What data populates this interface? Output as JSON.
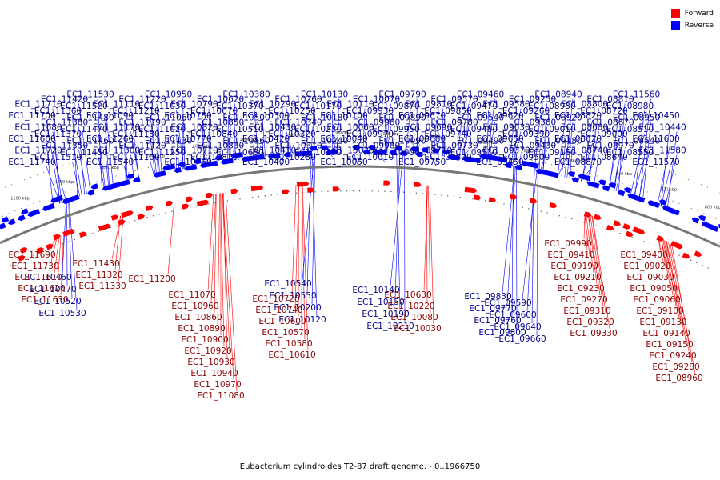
{
  "diagram": {
    "caption": "Eubacterium cylindroides T2-87 draft genome. - 0..1966750",
    "legend": [
      {
        "label": "Forward",
        "color": "#ff0000"
      },
      {
        "label": "Reverse",
        "color": "#0000ff"
      }
    ],
    "ticks": [
      "1100 kbp",
      "1080 kbp",
      "1060 kbp",
      "1040 kbp",
      "1020 kbp",
      "1000 kbp",
      "980 kbp",
      "960 kbp",
      "940 kbp",
      "920 kbp",
      "900 kbp",
      "880 kbp",
      "860 kbp",
      "840 kbp",
      "820 kbp",
      "800 kbp"
    ],
    "reverse_labels": [
      "EC1_11740",
      "EC1_11720",
      "EC1_11660",
      "EC1_11680",
      "EC1_11700",
      "EC1_11710",
      "EC1_11510",
      "EC1_11350",
      "EC1_11370",
      "EC1_11380",
      "EC1_11360",
      "EC1_11420",
      "EC1_11450",
      "EC1_11460",
      "EC1_11470",
      "EC1_11480",
      "EC1_11520",
      "EC1_11530",
      "EC1_11540",
      "EC1_11300",
      "EC1_11260",
      "EC1_11170",
      "EC1_11090",
      "EC1_11110",
      "EC1_11100",
      "EC1_11120",
      "EC1_11180",
      "EC1_11190",
      "EC1_11210",
      "EC1_11220",
      "EC1_11250",
      "EC1_11130",
      "EC1_11020",
      "EC1_11060",
      "EC1_11030",
      "EC1_10950",
      "EC1_10760",
      "EC1_10710",
      "EC1_10770",
      "EC1_10820",
      "EC1_10780",
      "EC1_10790",
      "EC1_10810",
      "EC1_10830",
      "EC1_10840",
      "EC1_10850",
      "EC1_10670",
      "EC1_10620",
      "EC1_10680",
      "EC1_10560",
      "EC1_10510",
      "EC1_10500",
      "EC1_10370",
      "EC1_10380",
      "EC1_10400",
      "EC1_10410",
      "EC1_10420",
      "EC1_10430",
      "EC1_10300",
      "EC1_10290",
      "EC1_10280",
      "EC1_10310",
      "EC1_10320",
      "EC1_10340",
      "EC1_10250",
      "EC1_10260",
      "EC1_10270",
      "EC1_10240",
      "EC1_10230",
      "EC1_10180",
      "EC1_10170",
      "EC1_10130",
      "EC1_10050",
      "EC1_10020",
      "EC1_10040",
      "EC1_10060",
      "EC1_10100",
      "EC1_10110",
      "EC1_10010",
      "EC1_09980",
      "EC1_09970",
      "EC1_09960",
      "EC1_09930",
      "EC1_10070",
      "EC1_10000",
      "EC1_10090",
      "EC1_09950",
      "EC1_09890",
      "EC1_09870",
      "EC1_09790",
      "EC1_09750",
      "EC1_09710",
      "EC1_09680",
      "EC1_09690",
      "EC1_09670",
      "EC1_09810",
      "EC1_09820",
      "EC1_09730",
      "EC1_09740",
      "EC1_09780",
      "EC1_09850",
      "EC1_09570",
      "EC1_09510",
      "EC1_09490",
      "EC1_09480",
      "EC1_09540",
      "EC1_09470",
      "EC1_09460",
      "EC1_09450",
      "EC1_09370",
      "EC1_09650",
      "EC1_09630",
      "EC1_09620",
      "EC1_09580",
      "EC1_09500",
      "EC1_09430",
      "EC1_09390",
      "EC1_09360",
      "EC1_09260",
      "EC1_09250",
      "EC1_09160",
      "EC1_09180",
      "EC1_09010",
      "EC1_08920",
      "EC1_08930",
      "EC1_08940",
      "EC1_08870",
      "EC1_08740",
      "EC1_08620",
      "EC1_08680",
      "EC1_08820",
      "EC1_08800",
      "EC1_08640",
      "EC1_08970",
      "EC1_09000",
      "EC1_08670",
      "EC1_08720",
      "EC1_08810",
      "EC1_08550",
      "EC1_08540",
      "EC1_08510",
      "EC1_08950",
      "EC1_08980",
      "EC1_11560",
      "EC1_11570",
      "EC1_11580",
      "EC1_11600",
      "EC1_10440",
      "EC1_10450",
      "EC1_10460",
      "EC1_10470",
      "EC1_10520",
      "EC1_10530",
      "EC1_10540",
      "EC1_10550",
      "EC1_10200",
      "EC1_10120",
      "EC1_10140",
      "EC1_10150",
      "EC1_10190",
      "EC1_10210",
      "EC1_09830",
      "EC1_09770",
      "EC1_09760",
      "EC1_09800",
      "EC1_09590",
      "EC1_09600",
      "EC1_09640",
      "EC1_09660"
    ],
    "forward_labels": [
      "EC1_11690",
      "EC1_11730",
      "EC1_11610",
      "EC1_11620",
      "EC1_11630",
      "EC1_11430",
      "EC1_11320",
      "EC1_11330",
      "EC1_11200",
      "EC1_11070",
      "EC1_10960",
      "EC1_10860",
      "EC1_10890",
      "EC1_10900",
      "EC1_10920",
      "EC1_10930",
      "EC1_10940",
      "EC1_10970",
      "EC1_11080",
      "EC1_10720",
      "EC1_10740",
      "EC1_10600",
      "EC1_10570",
      "EC1_10580",
      "EC1_10610",
      "EC1_10630",
      "EC1_10220",
      "EC1_10080",
      "EC1_10030",
      "EC1_09990",
      "EC1_09410",
      "EC1_09190",
      "EC1_09210",
      "EC1_09230",
      "EC1_09270",
      "EC1_09310",
      "EC1_09320",
      "EC1_09330",
      "EC1_09400",
      "EC1_09020",
      "EC1_09030",
      "EC1_09050",
      "EC1_09060",
      "EC1_09100",
      "EC1_09130",
      "EC1_09140",
      "EC1_09150",
      "EC1_09240",
      "EC1_09280",
      "EC1_08960"
    ]
  }
}
